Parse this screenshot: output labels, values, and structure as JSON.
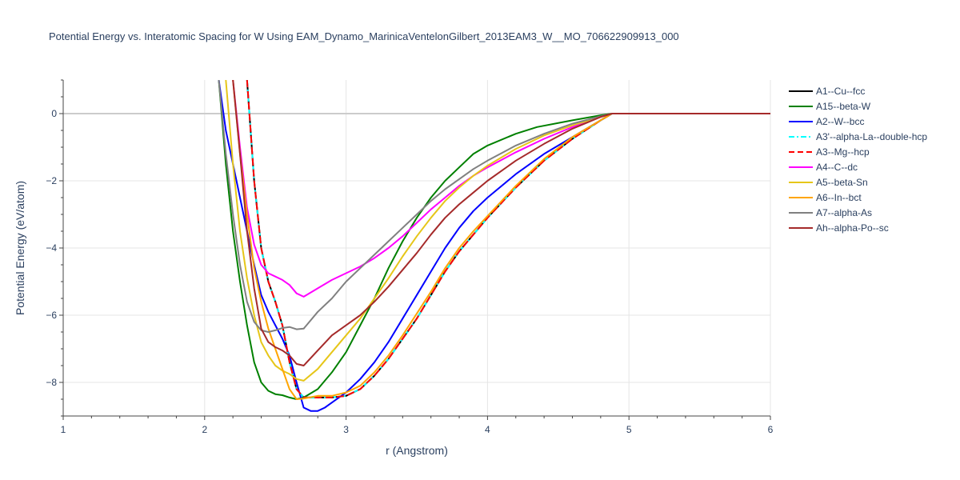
{
  "chart_data": {
    "type": "line",
    "title": "Potential Energy vs. Interatomic Spacing for W Using EAM_Dynamo_MarinicaVentelonGilbert_2013EAM3_W__MO_706622909913_000",
    "xlabel": "r (Angstrom)",
    "ylabel": "Potential Energy (eV/atom)",
    "xlim": [
      1,
      6
    ],
    "ylim": [
      -9,
      1
    ],
    "x_ticks": [
      "1",
      "2",
      "3",
      "4",
      "5",
      "6"
    ],
    "x_tick_values": [
      1,
      2,
      3,
      4,
      5,
      6
    ],
    "y_ticks": [
      "−8",
      "−6",
      "−4",
      "−2",
      "0"
    ],
    "y_tick_values": [
      -8,
      -6,
      -4,
      -2,
      0
    ],
    "grid": true,
    "legend_position": "right",
    "series": [
      {
        "name": "A1--Cu--fcc",
        "color": "#000000",
        "dash": "solid",
        "x": [
          2.3,
          2.35,
          2.4,
          2.45,
          2.5,
          2.55,
          2.6,
          2.65,
          2.7,
          2.8,
          2.9,
          3.0,
          3.1,
          3.2,
          3.3,
          3.4,
          3.5,
          3.6,
          3.7,
          3.8,
          3.9,
          4.0,
          4.2,
          4.4,
          4.6,
          4.8,
          4.88,
          5.0,
          5.5,
          6.0
        ],
        "y": [
          1.0,
          -2.0,
          -4.0,
          -5.0,
          -5.6,
          -6.3,
          -7.4,
          -8.2,
          -8.45,
          -8.45,
          -8.45,
          -8.4,
          -8.2,
          -7.8,
          -7.3,
          -6.7,
          -6.1,
          -5.4,
          -4.7,
          -4.1,
          -3.6,
          -3.1,
          -2.2,
          -1.4,
          -0.75,
          -0.2,
          0.0,
          0.0,
          0.0,
          0.0
        ]
      },
      {
        "name": "A15--beta-W",
        "color": "#008000",
        "dash": "solid",
        "x": [
          2.1,
          2.15,
          2.2,
          2.25,
          2.3,
          2.35,
          2.4,
          2.45,
          2.5,
          2.55,
          2.6,
          2.65,
          2.7,
          2.8,
          2.9,
          3.0,
          3.1,
          3.2,
          3.3,
          3.4,
          3.5,
          3.6,
          3.7,
          3.8,
          3.9,
          4.0,
          4.2,
          4.35,
          4.6,
          4.8,
          4.88,
          5.0,
          5.5,
          6.0
        ],
        "y": [
          1.0,
          -1.5,
          -3.5,
          -5.0,
          -6.3,
          -7.4,
          -8.0,
          -8.25,
          -8.35,
          -8.38,
          -8.45,
          -8.5,
          -8.45,
          -8.2,
          -7.7,
          -7.1,
          -6.3,
          -5.5,
          -4.6,
          -3.8,
          -3.1,
          -2.5,
          -2.0,
          -1.6,
          -1.2,
          -0.95,
          -0.6,
          -0.4,
          -0.2,
          -0.05,
          0.0,
          0.0,
          0.0,
          0.0
        ]
      },
      {
        "name": "A2--W--bcc",
        "color": "#0000ff",
        "dash": "solid",
        "x": [
          2.1,
          2.15,
          2.2,
          2.25,
          2.3,
          2.35,
          2.4,
          2.45,
          2.5,
          2.55,
          2.6,
          2.65,
          2.7,
          2.75,
          2.8,
          2.85,
          2.9,
          3.0,
          3.1,
          3.2,
          3.3,
          3.4,
          3.5,
          3.6,
          3.7,
          3.8,
          3.9,
          4.0,
          4.2,
          4.4,
          4.6,
          4.8,
          4.88,
          5.0,
          5.5,
          6.0
        ],
        "y": [
          1.0,
          -0.5,
          -1.5,
          -2.5,
          -3.5,
          -4.5,
          -5.4,
          -5.9,
          -6.3,
          -6.7,
          -7.2,
          -8.0,
          -8.75,
          -8.85,
          -8.85,
          -8.75,
          -8.6,
          -8.3,
          -7.9,
          -7.4,
          -6.8,
          -6.1,
          -5.4,
          -4.7,
          -4.0,
          -3.4,
          -2.9,
          -2.5,
          -1.8,
          -1.2,
          -0.7,
          -0.2,
          0.0,
          0.0,
          0.0,
          0.0
        ]
      },
      {
        "name": "A3'--alpha-La--double-hcp",
        "color": "#00ffff",
        "dash": "dashdot",
        "x": [
          2.3,
          2.35,
          2.4,
          2.45,
          2.5,
          2.55,
          2.6,
          2.65,
          2.7,
          2.8,
          2.9,
          3.0,
          3.1,
          3.2,
          3.3,
          3.4,
          3.5,
          3.6,
          3.7,
          3.8,
          3.9,
          4.0,
          4.2,
          4.4,
          4.6,
          4.8,
          4.88,
          5.0,
          5.5,
          6.0
        ],
        "y": [
          1.0,
          -2.0,
          -4.0,
          -5.0,
          -5.6,
          -6.3,
          -7.4,
          -8.2,
          -8.45,
          -8.45,
          -8.45,
          -8.4,
          -8.2,
          -7.8,
          -7.3,
          -6.7,
          -6.1,
          -5.4,
          -4.7,
          -4.1,
          -3.6,
          -3.1,
          -2.2,
          -1.4,
          -0.75,
          -0.2,
          0.0,
          0.0,
          0.0,
          0.0
        ]
      },
      {
        "name": "A3--Mg--hcp",
        "color": "#ff0000",
        "dash": "dash",
        "x": [
          2.3,
          2.35,
          2.4,
          2.45,
          2.5,
          2.55,
          2.6,
          2.65,
          2.7,
          2.8,
          2.9,
          3.0,
          3.1,
          3.2,
          3.3,
          3.4,
          3.5,
          3.6,
          3.7,
          3.8,
          3.9,
          4.0,
          4.2,
          4.4,
          4.6,
          4.8,
          4.88,
          5.0,
          5.5,
          6.0
        ],
        "y": [
          1.0,
          -2.0,
          -4.0,
          -5.0,
          -5.6,
          -6.3,
          -7.4,
          -8.2,
          -8.45,
          -8.45,
          -8.45,
          -8.4,
          -8.2,
          -7.8,
          -7.3,
          -6.7,
          -6.1,
          -5.4,
          -4.7,
          -4.1,
          -3.6,
          -3.1,
          -2.2,
          -1.4,
          -0.75,
          -0.2,
          0.0,
          0.0,
          0.0,
          0.0
        ]
      },
      {
        "name": "A4--C--dc",
        "color": "#ff00ff",
        "dash": "solid",
        "x": [
          2.2,
          2.25,
          2.3,
          2.35,
          2.4,
          2.45,
          2.5,
          2.55,
          2.6,
          2.65,
          2.7,
          2.8,
          2.9,
          3.0,
          3.1,
          3.2,
          3.3,
          3.4,
          3.5,
          3.6,
          3.7,
          3.8,
          3.9,
          4.0,
          4.2,
          4.4,
          4.6,
          4.8,
          4.88,
          5.0,
          5.5,
          6.0
        ],
        "y": [
          1.0,
          -1.0,
          -2.8,
          -3.9,
          -4.5,
          -4.75,
          -4.85,
          -4.95,
          -5.1,
          -5.35,
          -5.45,
          -5.2,
          -4.95,
          -4.75,
          -4.55,
          -4.3,
          -4.0,
          -3.65,
          -3.25,
          -2.85,
          -2.5,
          -2.15,
          -1.85,
          -1.6,
          -1.15,
          -0.75,
          -0.4,
          -0.1,
          0.0,
          0.0,
          0.0,
          0.0
        ]
      },
      {
        "name": "A5--beta-Sn",
        "color": "#e6c619",
        "dash": "solid",
        "x": [
          2.15,
          2.2,
          2.25,
          2.3,
          2.35,
          2.4,
          2.45,
          2.5,
          2.55,
          2.6,
          2.65,
          2.7,
          2.8,
          2.9,
          3.0,
          3.1,
          3.2,
          3.3,
          3.4,
          3.5,
          3.6,
          3.7,
          3.8,
          3.9,
          4.0,
          4.2,
          4.4,
          4.6,
          4.8,
          4.88,
          5.0,
          5.5,
          6.0
        ],
        "y": [
          1.0,
          -1.5,
          -3.5,
          -4.9,
          -6.0,
          -6.8,
          -7.2,
          -7.5,
          -7.65,
          -7.75,
          -7.9,
          -7.95,
          -7.6,
          -7.1,
          -6.6,
          -6.1,
          -5.5,
          -4.9,
          -4.25,
          -3.65,
          -3.1,
          -2.6,
          -2.2,
          -1.85,
          -1.55,
          -1.05,
          -0.65,
          -0.35,
          -0.1,
          0.0,
          0.0,
          0.0,
          0.0
        ]
      },
      {
        "name": "A6--In--bct",
        "color": "#ffa500",
        "dash": "solid",
        "x": [
          2.2,
          2.25,
          2.3,
          2.35,
          2.4,
          2.45,
          2.5,
          2.55,
          2.6,
          2.65,
          2.7,
          2.8,
          2.9,
          3.0,
          3.1,
          3.2,
          3.3,
          3.4,
          3.5,
          3.6,
          3.7,
          3.8,
          3.9,
          4.0,
          4.2,
          4.4,
          4.6,
          4.8,
          4.88,
          5.0,
          5.5,
          6.0
        ],
        "y": [
          1.0,
          -1.2,
          -3.0,
          -4.6,
          -5.6,
          -6.4,
          -7.0,
          -7.6,
          -8.2,
          -8.5,
          -8.48,
          -8.4,
          -8.4,
          -8.3,
          -8.1,
          -7.7,
          -7.2,
          -6.6,
          -5.95,
          -5.3,
          -4.6,
          -4.0,
          -3.5,
          -3.05,
          -2.15,
          -1.35,
          -0.7,
          -0.2,
          0.0,
          0.0,
          0.0,
          0.0
        ]
      },
      {
        "name": "A7--alpha-As",
        "color": "#808080",
        "dash": "solid",
        "x": [
          2.1,
          2.15,
          2.2,
          2.25,
          2.3,
          2.35,
          2.4,
          2.45,
          2.5,
          2.55,
          2.6,
          2.65,
          2.7,
          2.8,
          2.9,
          3.0,
          3.1,
          3.2,
          3.3,
          3.4,
          3.5,
          3.6,
          3.7,
          3.8,
          3.9,
          4.0,
          4.2,
          4.4,
          4.6,
          4.8,
          4.88,
          5.0,
          5.5,
          6.0
        ],
        "y": [
          1.0,
          -1.2,
          -3.0,
          -4.5,
          -5.6,
          -6.2,
          -6.45,
          -6.5,
          -6.45,
          -6.38,
          -6.35,
          -6.42,
          -6.4,
          -5.9,
          -5.5,
          -5.0,
          -4.6,
          -4.2,
          -3.8,
          -3.4,
          -3.0,
          -2.6,
          -2.25,
          -1.95,
          -1.65,
          -1.4,
          -0.95,
          -0.6,
          -0.3,
          -0.08,
          0.0,
          0.0,
          0.0,
          0.0
        ]
      },
      {
        "name": "Ah--alpha-Po--sc",
        "color": "#a52a2a",
        "dash": "solid",
        "x": [
          2.2,
          2.25,
          2.3,
          2.35,
          2.4,
          2.45,
          2.5,
          2.55,
          2.6,
          2.65,
          2.7,
          2.8,
          2.9,
          3.0,
          3.1,
          3.2,
          3.3,
          3.4,
          3.5,
          3.6,
          3.7,
          3.8,
          3.9,
          4.0,
          4.2,
          4.4,
          4.6,
          4.8,
          4.88,
          5.0,
          5.5,
          6.0
        ],
        "y": [
          1.0,
          -1.2,
          -3.5,
          -5.2,
          -6.4,
          -6.8,
          -6.95,
          -7.05,
          -7.2,
          -7.45,
          -7.5,
          -7.05,
          -6.6,
          -6.3,
          -6.0,
          -5.6,
          -5.15,
          -4.65,
          -4.15,
          -3.6,
          -3.1,
          -2.7,
          -2.35,
          -2.0,
          -1.4,
          -0.9,
          -0.45,
          -0.1,
          0.0,
          0.0,
          0.0,
          0.0
        ]
      }
    ]
  }
}
